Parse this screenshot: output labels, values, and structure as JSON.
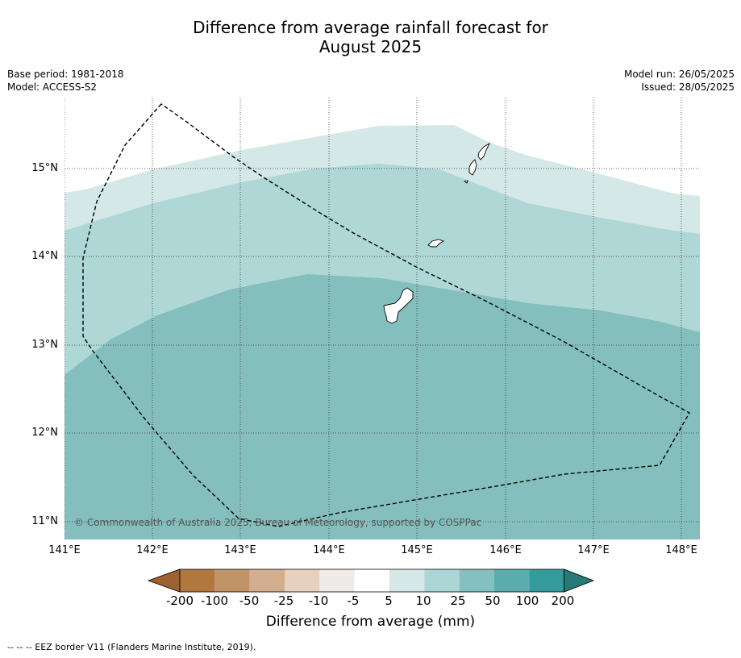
{
  "title_line1": "Difference from average rainfall forecast for",
  "title_line2": "August 2025",
  "base_period": "Base period: 1981-2018",
  "model": "Model: ACCESS-S2",
  "model_run": "Model run: 26/05/2025",
  "issued": "Issued: 28/05/2025",
  "latitude_labels": [
    "15°N",
    "14°N",
    "13°N",
    "12°N",
    "11°N"
  ],
  "longitude_labels": [
    "141°E",
    "142°E",
    "143°E",
    "144°E",
    "145°E",
    "146°E",
    "147°E",
    "148°E"
  ],
  "copyright": "© Commonwealth of Australia 2025, Bureau of Meteorology, supported by COSPPac",
  "colorbar": {
    "ticks": [
      "-200",
      "-100",
      "-50",
      "-25",
      "-10",
      "-5",
      "5",
      "10",
      "25",
      "50",
      "100",
      "200"
    ],
    "colors": [
      "#9d6232",
      "#b0773e",
      "#c09268",
      "#d3ae8e",
      "#e6d1bf",
      "#eeebe8",
      "#ffffff",
      "#d4e8e7",
      "#aad6d5",
      "#84c0bf",
      "#5aadac",
      "#339b9a",
      "#287a79"
    ],
    "label": "Difference from average (mm)"
  },
  "zones": [
    {
      "name": "5 to 10",
      "color": "#d4e8e7"
    },
    {
      "name": "10 to 25",
      "color": "#aed7d6"
    },
    {
      "name": "25 to 50",
      "color": "#84bfbe"
    }
  ],
  "footnote": "--  --  -- EEZ border V11 (Flanders Marine Institute, 2019)."
}
